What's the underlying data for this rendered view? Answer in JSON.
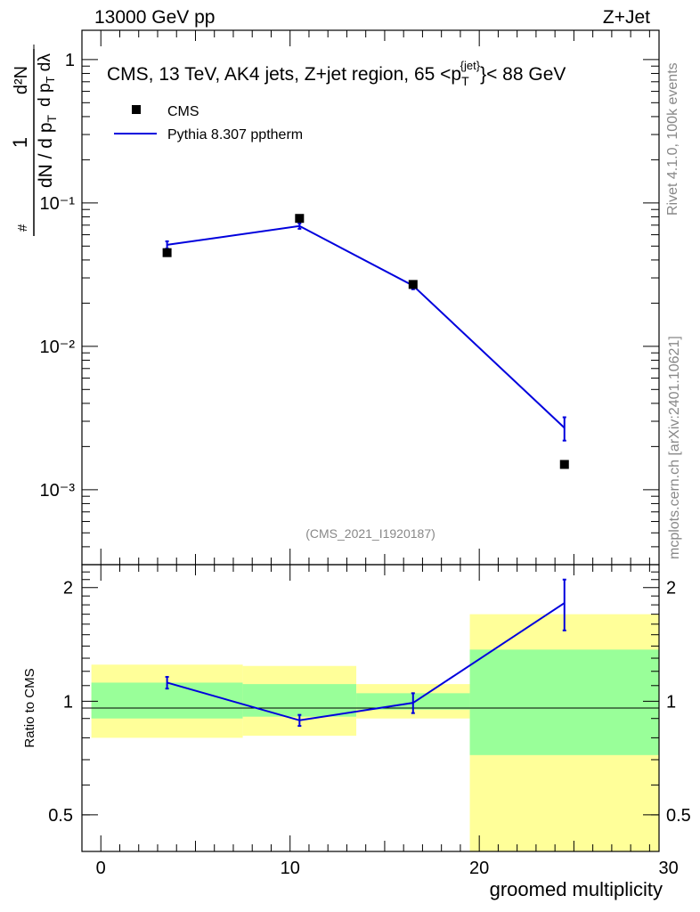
{
  "header": {
    "left": "13000 GeV pp",
    "right": "Z+Jet"
  },
  "side": {
    "rivet": "Rivet 4.1.0,  100k events",
    "mcplots": "mcplots.cern.ch [arXiv:2401.10621]"
  },
  "chart_data": [
    {
      "type": "scatter",
      "name": "main",
      "title": "CMS, 13 TeV, AK4 jets, Z+jet region, 65 <p_T^{jet}< 88 GeV",
      "watermark": "(CMS_2021_I1920187)",
      "yscale": "log",
      "xlim": [
        -1,
        29.5
      ],
      "ylim": [
        0.0003,
        1.6
      ],
      "y_ticks": [
        {
          "value": 1,
          "label": "1"
        },
        {
          "value": 0.1,
          "label": "10⁻¹"
        },
        {
          "value": 0.01,
          "label": "10⁻²"
        },
        {
          "value": 0.001,
          "label": "10⁻³"
        }
      ],
      "ylabel": "1/(dN/dp_T) · d²N/(dp_T dλ)",
      "legend": [
        "CMS",
        "Pythia 8.307 pptherm"
      ],
      "series": [
        {
          "name": "CMS",
          "kind": "marker",
          "color": "#000000",
          "x": [
            3.5,
            10.5,
            16.5,
            24.5
          ],
          "y": [
            0.045,
            0.078,
            0.027,
            0.0015
          ]
        },
        {
          "name": "Pythia 8.307 pptherm",
          "kind": "line",
          "color": "#0000dd",
          "x": [
            3.5,
            10.5,
            16.5,
            24.5
          ],
          "y": [
            0.051,
            0.069,
            0.0265,
            0.0027
          ],
          "err": [
            0.003,
            0.003,
            0.0015,
            0.0005
          ]
        }
      ]
    },
    {
      "type": "line",
      "name": "ratio",
      "ylabel": "Ratio to CMS",
      "xlabel": "groomed multiplicity",
      "yscale": "log",
      "xlim": [
        -1,
        29.5
      ],
      "ylim": [
        0.4,
        2.3
      ],
      "x_ticks": [
        0,
        10,
        20,
        30
      ],
      "y_ticks": [
        {
          "value": 2,
          "label": "2"
        },
        {
          "value": 1,
          "label": "1"
        },
        {
          "value": 0.5,
          "label": "0.5"
        }
      ],
      "bands": [
        {
          "x0": -0.5,
          "x1": 7.5,
          "yellow": [
            0.8,
            1.25
          ],
          "green": [
            0.9,
            1.12
          ]
        },
        {
          "x0": 7.5,
          "x1": 13.5,
          "yellow": [
            0.81,
            1.24
          ],
          "green": [
            0.91,
            1.11
          ]
        },
        {
          "x0": 13.5,
          "x1": 19.5,
          "yellow": [
            0.9,
            1.11
          ],
          "green": [
            0.95,
            1.05
          ]
        },
        {
          "x0": 19.5,
          "x1": 29.5,
          "yellow": [
            0.4,
            1.7
          ],
          "green": [
            0.72,
            1.37
          ]
        }
      ],
      "series": [
        {
          "name": "Pythia 8.307 pptherm",
          "color": "#0000dd",
          "x": [
            3.5,
            10.5,
            16.5,
            24.5
          ],
          "y": [
            1.12,
            0.89,
            0.99,
            1.82
          ],
          "err": [
            0.04,
            0.03,
            0.06,
            0.28
          ]
        }
      ]
    }
  ]
}
